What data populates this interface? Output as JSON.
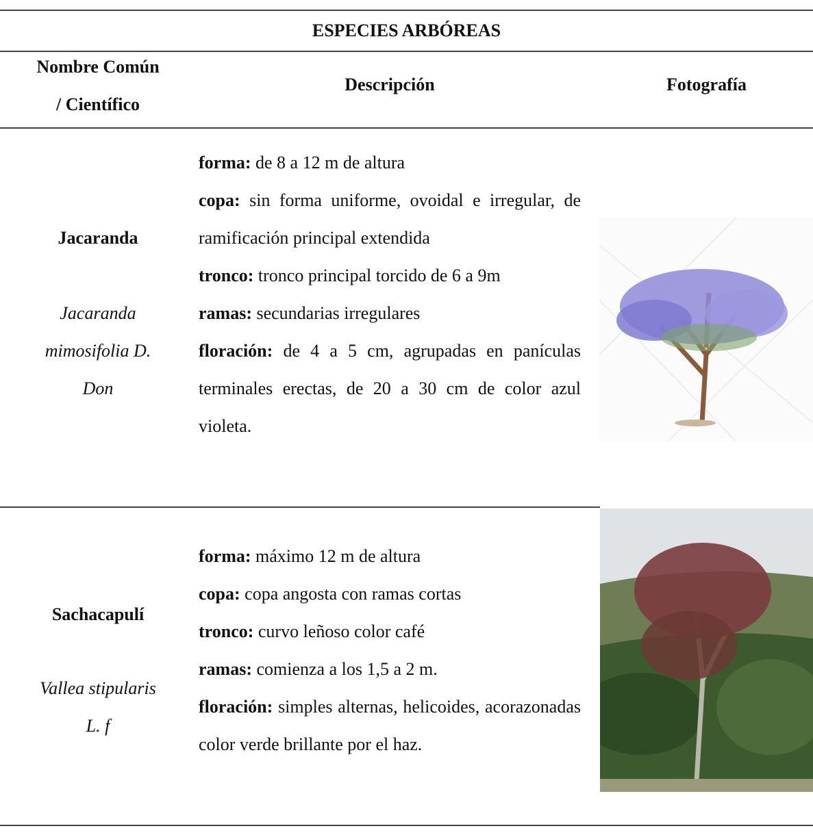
{
  "table": {
    "title": "ESPECIES ARBÓREAS",
    "headers": {
      "name": [
        "Nombre Común",
        "/ Científico"
      ],
      "description": "Descripción",
      "photo": "Fotografía"
    },
    "rows": [
      {
        "common": "Jacaranda",
        "scientific": [
          "Jacaranda",
          "mimosifolia D.",
          "Don"
        ],
        "description": [
          {
            "label": "forma:",
            "text": "de 8 a 12 m de altura"
          },
          {
            "label": "copa:",
            "text": "sin forma uniforme, ovoidal e irregular, de ramificación principal extendida"
          },
          {
            "label": "tronco:",
            "text": "tronco principal torcido de 6 a 9m"
          },
          {
            "label": "ramas:",
            "text": "secundarias irregulares"
          },
          {
            "label": "floración:",
            "text": "de 4 a 5 cm, agrupadas en panículas terminales erectas, de 20 a 30 cm de color azul violeta."
          }
        ]
      },
      {
        "common": "Sachacapulí",
        "scientific": [
          "Vallea stipularis",
          "L. f"
        ],
        "description": [
          {
            "label": "forma:",
            "text": "máximo 12 m de altura"
          },
          {
            "label": "copa:",
            "text": "copa angosta con ramas cortas"
          },
          {
            "label": "tronco:",
            "text": "curvo leñoso color café"
          },
          {
            "label": "ramas:",
            "text": "comienza a los 1,5 a 2 m."
          },
          {
            "label": "floración:",
            "text": "simples alternas, helicoides, acorazonadas color verde brillante por el haz."
          }
        ]
      }
    ]
  }
}
